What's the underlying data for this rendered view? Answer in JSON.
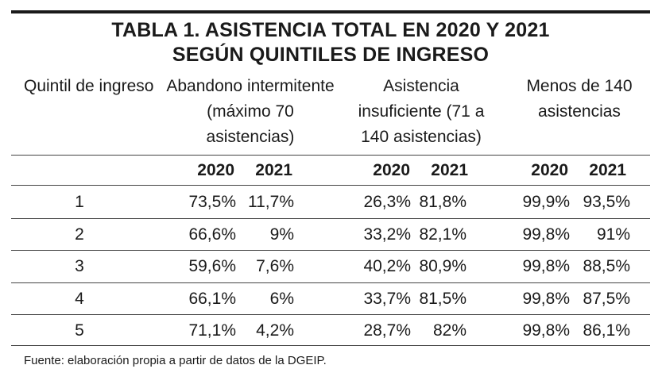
{
  "title": {
    "line1": "TABLA 1. ASISTENCIA TOTAL EN 2020 Y 2021",
    "line2": "SEGÚN QUINTILES DE INGRESO"
  },
  "headers": {
    "quintil": "Quintil de ingreso",
    "groups": [
      "Abandono intermitente (máximo 70 asistencias)",
      "Asistencia insuficiente (71 a 140 asistencias)",
      "Menos de 140 asistencias"
    ],
    "years": [
      "2020",
      "2021",
      "2020",
      "2021",
      "2020",
      "2021"
    ]
  },
  "rows": [
    {
      "quintil": "1",
      "values": [
        "73,5%",
        "11,7%",
        "26,3%",
        "81,8%",
        "99,9%",
        "93,5%"
      ]
    },
    {
      "quintil": "2",
      "values": [
        "66,6%",
        "9%",
        "33,2%",
        "82,1%",
        "99,8%",
        "91%"
      ]
    },
    {
      "quintil": "3",
      "values": [
        "59,6%",
        "7,6%",
        "40,2%",
        "80,9%",
        "99,8%",
        "88,5%"
      ]
    },
    {
      "quintil": "4",
      "values": [
        "66,1%",
        "6%",
        "33,7%",
        "81,5%",
        "99,8%",
        "87,5%"
      ]
    },
    {
      "quintil": "5",
      "values": [
        "71,1%",
        "4,2%",
        "28,7%",
        "82%",
        "99,8%",
        "86,1%"
      ]
    }
  ],
  "source": "Fuente: elaboración propia a partir de datos de la DGEIP."
}
